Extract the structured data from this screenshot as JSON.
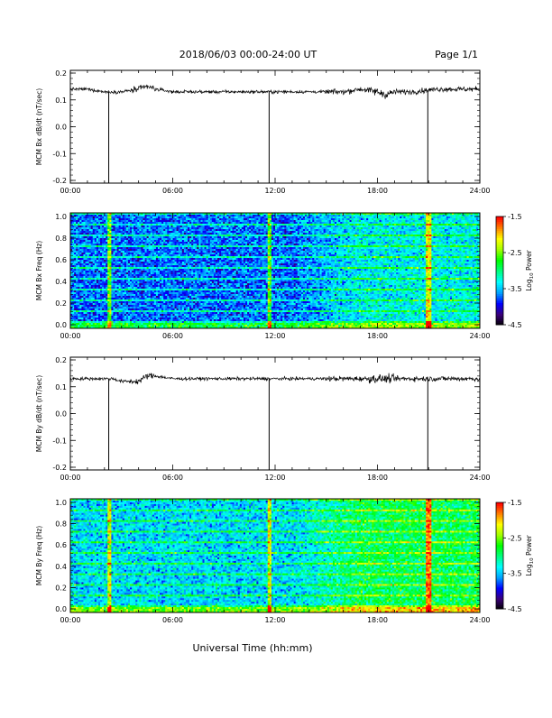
{
  "header": {
    "title": "2018/06/03  00:00-24:00 UT",
    "page": "Page 1/1"
  },
  "chart_data": [
    {
      "type": "line",
      "ylabel": "MCM Bx dB/dt (nT/sec)",
      "xlim": [
        "00:00",
        "24:00"
      ],
      "ylim": [
        -0.2,
        0.2
      ],
      "x_ticks": [
        "00:00",
        "06:00",
        "12:00",
        "18:00",
        "24:00"
      ],
      "y_ticks": [
        "0.2",
        "0.1",
        "0.0",
        "-0.1",
        "-0.2"
      ],
      "series": [
        {
          "x_hours": [
            0,
            1,
            2,
            2.25,
            2.5,
            3,
            4,
            4.5,
            5,
            6,
            7,
            8,
            9,
            10,
            11,
            11.65,
            12,
            13,
            14,
            15,
            16,
            17,
            18,
            18.5,
            19,
            20,
            20.95,
            21.5,
            22,
            23,
            24
          ],
          "values": [
            0.14,
            0.14,
            0.13,
            -0.2,
            0.13,
            0.13,
            0.14,
            0.15,
            0.14,
            0.13,
            0.13,
            0.13,
            0.13,
            0.13,
            0.13,
            -0.2,
            0.13,
            0.13,
            0.13,
            0.13,
            0.13,
            0.14,
            0.13,
            0.12,
            0.13,
            0.13,
            -0.2,
            0.14,
            0.14,
            0.14,
            0.14
          ]
        }
      ],
      "color": "#000000"
    },
    {
      "type": "heatmap",
      "ylabel": "MCM Bx Freq (Hz)",
      "xlim": [
        "00:00",
        "24:00"
      ],
      "ylim": [
        0.0,
        1.0
      ],
      "x_ticks": [
        "00:00",
        "06:00",
        "12:00",
        "18:00",
        "24:00"
      ],
      "y_ticks": [
        "1.0",
        "0.8",
        "0.6",
        "0.4",
        "0.2",
        "0.0"
      ],
      "colorbar": {
        "label_main": "Log",
        "label_sub": "10",
        "label_tail": " Power",
        "ticks": [
          "-1.5",
          "-2.5",
          "-3.5",
          "-4.5"
        ],
        "range": [
          -4.5,
          -1.5
        ],
        "colormap": [
          "#000000",
          "#3a0078",
          "#0000ff",
          "#00a0ff",
          "#00ffff",
          "#00ff80",
          "#00ff00",
          "#a0ff00",
          "#ffff00",
          "#ff8000",
          "#ff0000"
        ]
      },
      "mean_level_early": -3.7,
      "mean_level_late": -3.3
    },
    {
      "type": "line",
      "ylabel": "MCM By dB/dt (nT/sec)",
      "xlim": [
        "00:00",
        "24:00"
      ],
      "ylim": [
        -0.2,
        0.2
      ],
      "x_ticks": [
        "00:00",
        "06:00",
        "12:00",
        "18:00",
        "24:00"
      ],
      "y_ticks": [
        "0.2",
        "0.1",
        "0.0",
        "-0.1",
        "-0.2"
      ],
      "series": [
        {
          "x_hours": [
            0,
            1,
            2,
            2.25,
            2.5,
            3,
            4,
            4.5,
            5,
            6,
            7,
            8,
            9,
            10,
            11,
            11.65,
            12,
            13,
            14,
            15,
            16,
            17,
            18,
            19,
            20,
            20.95,
            21.5,
            22,
            23,
            24
          ],
          "values": [
            0.13,
            0.13,
            0.13,
            -0.2,
            0.13,
            0.12,
            0.12,
            0.14,
            0.14,
            0.13,
            0.13,
            0.13,
            0.13,
            0.13,
            0.13,
            -0.2,
            0.13,
            0.13,
            0.13,
            0.13,
            0.13,
            0.13,
            0.13,
            0.13,
            0.13,
            -0.2,
            0.13,
            0.13,
            0.13,
            0.13
          ]
        }
      ],
      "color": "#000000"
    },
    {
      "type": "heatmap",
      "ylabel": "MCM By Freq (Hz)",
      "xlim": [
        "00:00",
        "24:00"
      ],
      "ylim": [
        0.0,
        1.0
      ],
      "x_ticks": [
        "00:00",
        "06:00",
        "12:00",
        "18:00",
        "24:00"
      ],
      "y_ticks": [
        "1.0",
        "0.8",
        "0.6",
        "0.4",
        "0.2",
        "0.0"
      ],
      "colorbar": {
        "label_main": "Log",
        "label_sub": "10",
        "label_tail": " Power",
        "ticks": [
          "-1.5",
          "-2.5",
          "-3.5",
          "-4.5"
        ],
        "range": [
          -4.5,
          -1.5
        ],
        "colormap": [
          "#000000",
          "#3a0078",
          "#0000ff",
          "#00a0ff",
          "#00ffff",
          "#00ff80",
          "#00ff00",
          "#a0ff00",
          "#ffff00",
          "#ff8000",
          "#ff0000"
        ]
      },
      "mean_level_early": -3.4,
      "mean_level_late": -2.9
    }
  ],
  "footer": {
    "xlabel": "Universal Time (hh:mm)"
  }
}
